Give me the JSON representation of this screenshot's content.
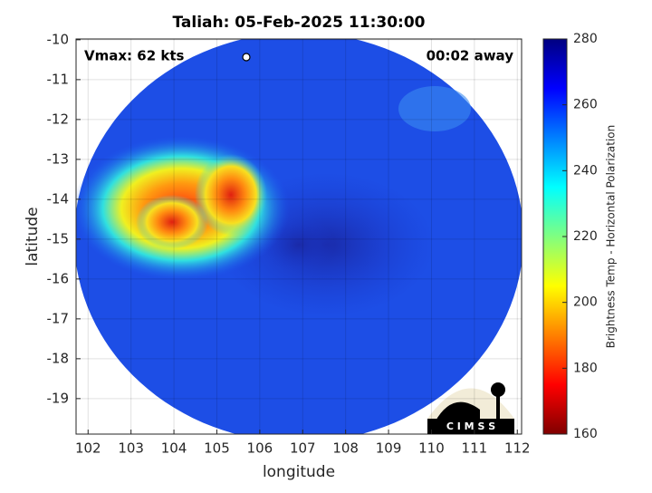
{
  "chart_data": {
    "type": "image-map",
    "title": "Taliah: 05-Feb-2025 11:30:00",
    "annotations": {
      "vmax": "Vmax: 62 kts",
      "away": "00:02 away",
      "logo": "C I M S S"
    },
    "x_label": "longitude",
    "y_label": "latitude",
    "xlim": [
      101.72,
      112.1
    ],
    "xticks": [
      102,
      103,
      104,
      105,
      106,
      107,
      108,
      109,
      110,
      111,
      112
    ],
    "ylim": [
      -19.89,
      -9.98
    ],
    "yticks": [
      -10,
      -11,
      -12,
      -13,
      -14,
      -15,
      -16,
      -17,
      -18,
      -19
    ],
    "grid": true,
    "colorbar": {
      "label": "Brightness Temp - Horizontal Polarization",
      "lim": [
        160,
        280
      ],
      "ticks": [
        160,
        180,
        200,
        220,
        240,
        260,
        280
      ],
      "colormap": "jet"
    }
  }
}
